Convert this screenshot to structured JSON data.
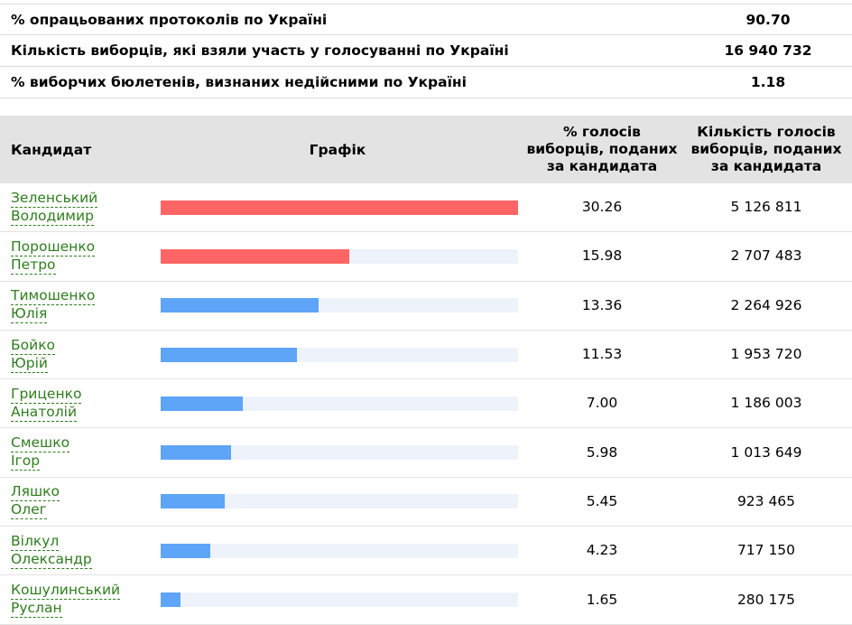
{
  "summary": [
    {
      "label": "% опрацьованих протоколів по Україні",
      "value": "90.70"
    },
    {
      "label": "Кількість виборців, які взяли участь у голосуванні по Україні",
      "value": "16 940 732"
    },
    {
      "label": "% виборчих бюлетенів, визнаних недійсними по Україні",
      "value": "1.18"
    }
  ],
  "header": {
    "candidate": "Кандидат",
    "graph": "Графік",
    "pct": "% голосів виборців, поданих за кандидата",
    "count": "Кількість голосів виборців, поданих за кандидата"
  },
  "colors": {
    "leader_bar": "#ff6565",
    "other_bar": "#5ea5f8",
    "track": "#eef3fb",
    "link": "#2e7d1e"
  },
  "candidates": [
    {
      "surname": "Зеленський",
      "name": "Володимир",
      "pct": "30.26",
      "votes": "5 126 811",
      "fill": 1.0,
      "leader": true
    },
    {
      "surname": "Порошенко",
      "name": "Петро",
      "pct": "15.98",
      "votes": "2 707 483",
      "fill": 0.528,
      "leader": true
    },
    {
      "surname": "Тимошенко",
      "name": "Юлія",
      "pct": "13.36",
      "votes": "2 264 926",
      "fill": 0.441,
      "leader": false
    },
    {
      "surname": "Бойко",
      "name": "Юрій",
      "pct": "11.53",
      "votes": "1 953 720",
      "fill": 0.381,
      "leader": false
    },
    {
      "surname": "Гриценко",
      "name": "Анатолій",
      "pct": "7.00",
      "votes": "1 186 003",
      "fill": 0.231,
      "leader": false
    },
    {
      "surname": "Смешко",
      "name": "Ігор",
      "pct": "5.98",
      "votes": "1 013 649",
      "fill": 0.198,
      "leader": false
    },
    {
      "surname": "Ляшко",
      "name": "Олег",
      "pct": "5.45",
      "votes": "923 465",
      "fill": 0.18,
      "leader": false
    },
    {
      "surname": "Вілкул",
      "name": "Олександр",
      "pct": "4.23",
      "votes": "717 150",
      "fill": 0.14,
      "leader": false
    },
    {
      "surname": "Кошулинський",
      "name": "Руслан",
      "pct": "1.65",
      "votes": "280 175",
      "fill": 0.055,
      "leader": false
    }
  ]
}
